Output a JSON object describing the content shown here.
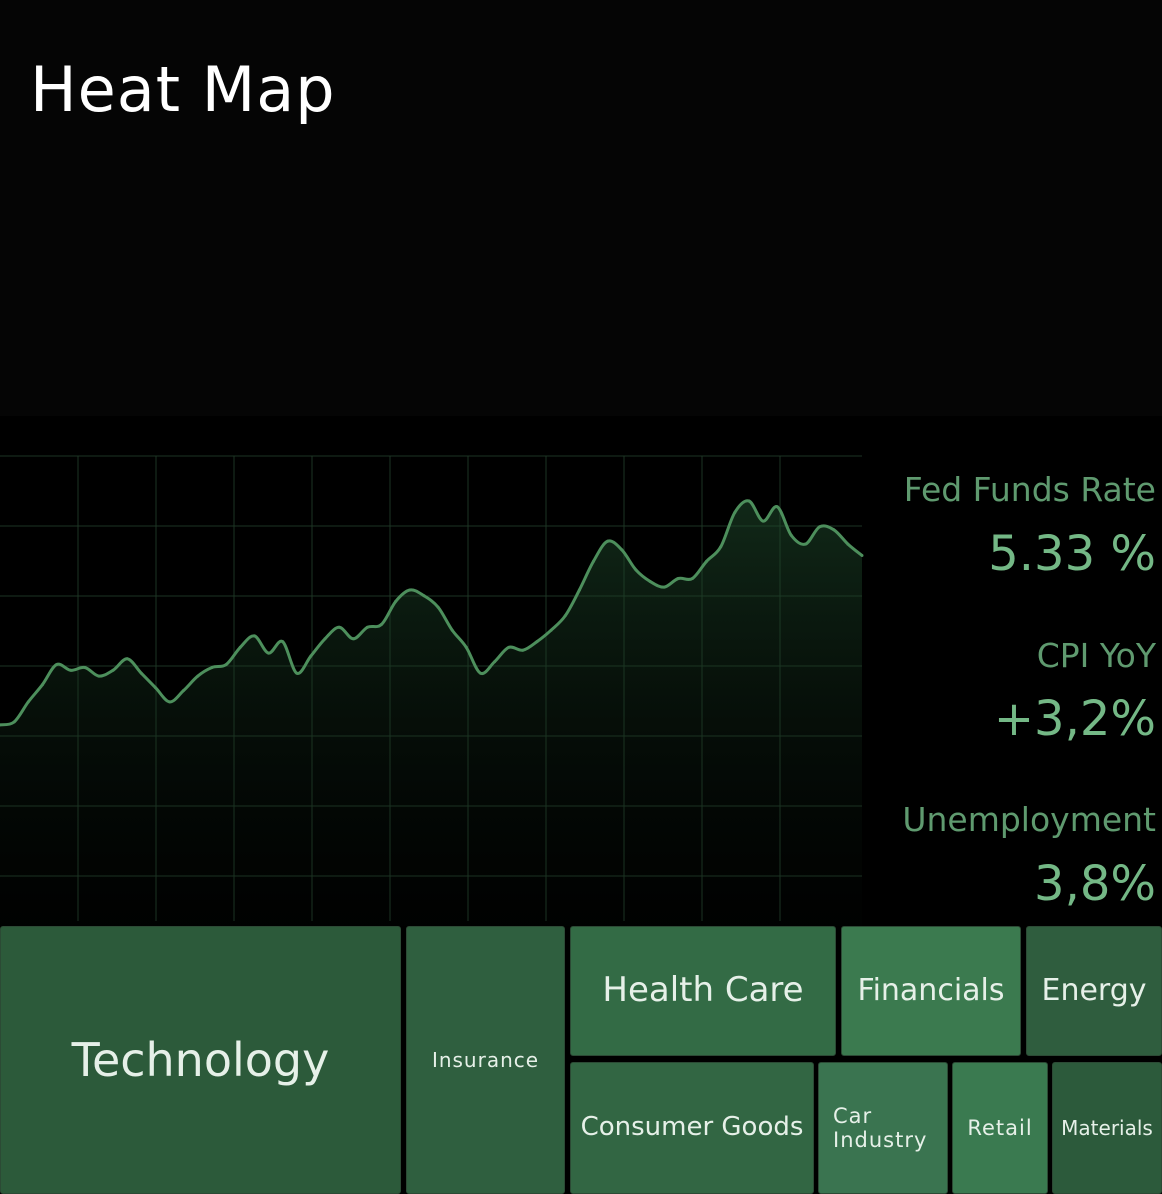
{
  "header": {
    "title": "Heat Map"
  },
  "stats": [
    {
      "label": "Fed Funds Rate",
      "value": "5.33 %"
    },
    {
      "label": "CPI YoY",
      "value": "+3,2%"
    },
    {
      "label": "Unemployment",
      "value": "3,8%"
    }
  ],
  "chart_data": {
    "type": "line",
    "title": "",
    "xlabel": "",
    "ylabel": "",
    "grid": true,
    "y_range": [
      0,
      100
    ],
    "series": [
      {
        "values": [
          22,
          23,
          30,
          36,
          43,
          41,
          42,
          39,
          41,
          45,
          40,
          35,
          30,
          34,
          39,
          42,
          43,
          49,
          53,
          47,
          51,
          40,
          46,
          52,
          56,
          52,
          56,
          57,
          65,
          69,
          67,
          63,
          55,
          49,
          40,
          44,
          49,
          48,
          51,
          55,
          60,
          69,
          79,
          86,
          83,
          76,
          72,
          70,
          73,
          73,
          79,
          84,
          96,
          100,
          93,
          98,
          88,
          85,
          91,
          90,
          85,
          81
        ]
      }
    ],
    "colors": {
      "line": "#4d8f5c",
      "grid": "#1d3524"
    }
  },
  "sectors": [
    {
      "name": "Technology",
      "color": "#2c5a3a"
    },
    {
      "name": "Insurance",
      "color": "#2f5f3f"
    },
    {
      "name": "Health Care",
      "color": "#336b45"
    },
    {
      "name": "Financials",
      "color": "#3b7a4f"
    },
    {
      "name": "Energy",
      "color": "#2f5d3e"
    },
    {
      "name": "Consumer Goods",
      "color": "#326643"
    },
    {
      "name": "Car Industry",
      "color": "#3a7450"
    },
    {
      "name": "Retail",
      "color": "#3a7a50"
    },
    {
      "name": "Materials",
      "color": "#2c5a3b"
    }
  ]
}
